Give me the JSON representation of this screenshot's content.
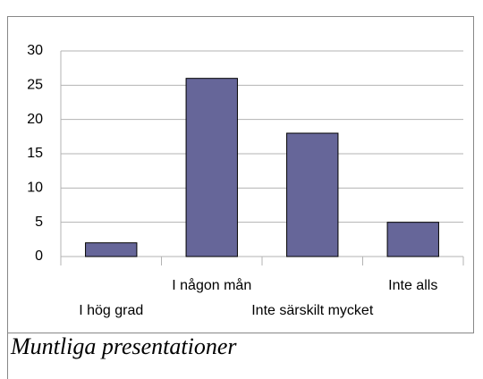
{
  "chart_data": {
    "type": "bar",
    "title": "Muntliga presentationer",
    "categories": [
      "I hög grad",
      "I någon mån",
      "Inte särskilt mycket",
      "Inte alls"
    ],
    "values": [
      2,
      26,
      18,
      5
    ],
    "color": "#666699",
    "ylim": [
      0,
      30
    ],
    "yticks": [
      0,
      5,
      10,
      15,
      20,
      25,
      30
    ],
    "grid": true
  }
}
